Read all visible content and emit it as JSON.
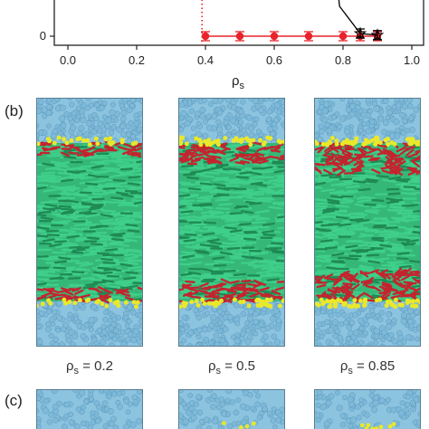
{
  "chart_data": {
    "type": "line",
    "xlabel": "ρ",
    "xlabel_sub": "s",
    "xlim": [
      -0.05,
      1.0
    ],
    "x_ticks": [
      "0.0",
      "0.2",
      "0.4",
      "0.6",
      "0.8",
      "1.0"
    ],
    "y_ticks": [
      "0"
    ],
    "series": [
      {
        "color": "#e8232a",
        "marker": "filled-circle-errorbar",
        "x": [
          0.4,
          0.5,
          0.6,
          0.7,
          0.8,
          0.85,
          0.9
        ],
        "y": [
          0,
          0,
          0,
          0,
          0,
          0,
          0
        ]
      },
      {
        "color": "#000000",
        "marker": "star-errorbar",
        "x": [
          0.79,
          0.85,
          0.9
        ],
        "y": [
          0.55,
          0.05,
          0.02
        ]
      }
    ],
    "reference_line": {
      "x": 0.39,
      "style": "dotted",
      "color": "#e8232a"
    }
  },
  "panels": {
    "b_label": "(b)",
    "c_label": "(c)"
  },
  "captions": [
    {
      "main": "ρ",
      "sub": "s",
      "rest": " = 0.2"
    },
    {
      "main": "ρ",
      "sub": "s",
      "rest": " = 0.5"
    },
    {
      "main": "ρ",
      "sub": "s",
      "rest": " = 0.85"
    }
  ],
  "colors": {
    "solvent": "#7fb9d8",
    "liquid_crystal": "#3fcf8a",
    "surfactant_tail": "#c4242f",
    "surfactant_head": "#e9e82a"
  }
}
